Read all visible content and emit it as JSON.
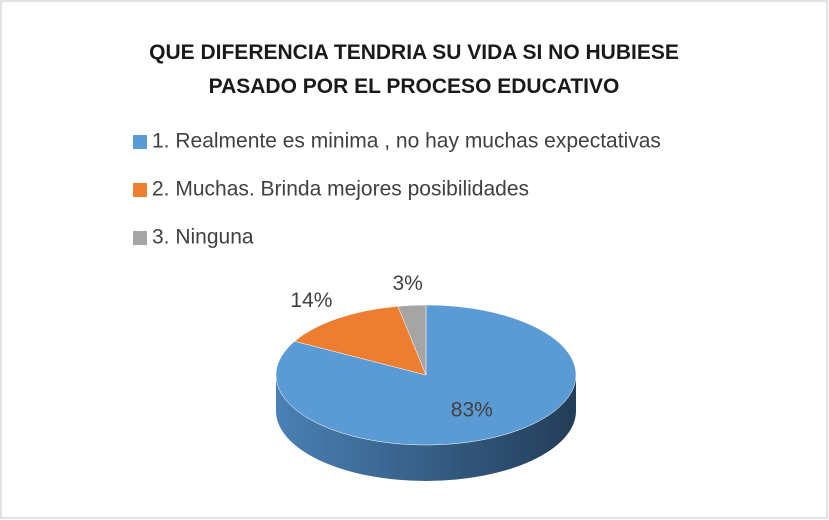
{
  "chart_data": {
    "type": "pie3d",
    "title": "QUE DIFERENCIA TENDRIA SU VIDA SI NO HUBIESE PASADO POR EL PROCESO EDUCATIVO",
    "categories": [
      "1. Realmente es minima , no hay muchas expectativas",
      "2. Muchas. Brinda mejores posibilidades",
      "3. Ninguna"
    ],
    "values": [
      83,
      14,
      3
    ],
    "value_labels": [
      "83%",
      "14%",
      "3%"
    ],
    "colors": [
      "#5b9bd5",
      "#ed7d31",
      "#a5a5a5"
    ],
    "legend": "top"
  }
}
